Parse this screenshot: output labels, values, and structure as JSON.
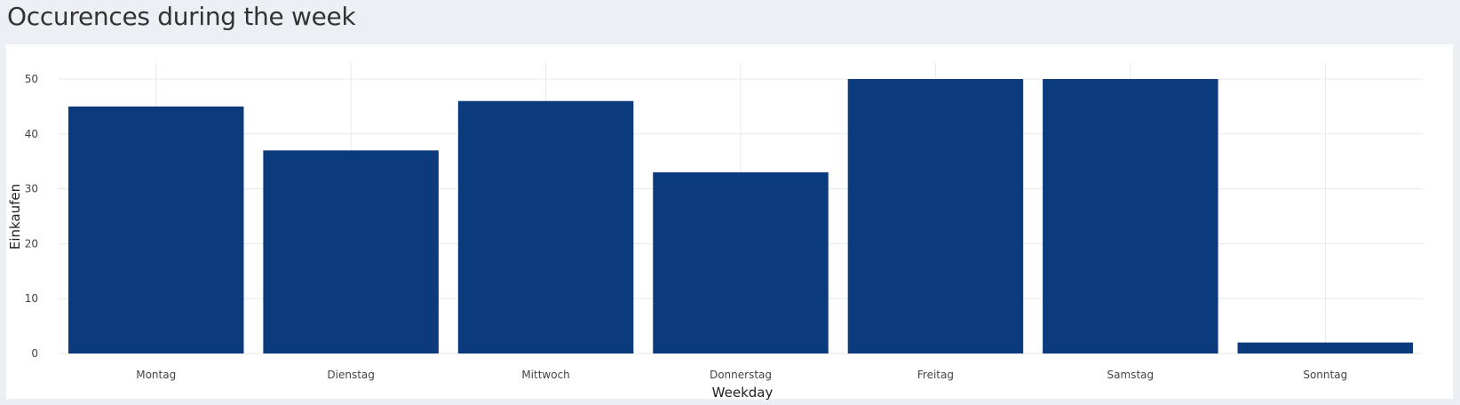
{
  "page": {
    "title": "Occurences during the week"
  },
  "chart_data": {
    "type": "bar",
    "categories": [
      "Montag",
      "Dienstag",
      "Mittwoch",
      "Donnerstag",
      "Freitag",
      "Samstag",
      "Sonntag"
    ],
    "values": [
      45,
      37,
      46,
      33,
      50,
      50,
      2
    ],
    "xlabel": "Weekday",
    "ylabel": "Einkaufen",
    "ylim": [
      0,
      53
    ],
    "yticks": [
      0,
      10,
      20,
      30,
      40,
      50
    ],
    "grid": true,
    "bar_color": "#0b3b7d",
    "grid_color": "#e8e8e8"
  }
}
